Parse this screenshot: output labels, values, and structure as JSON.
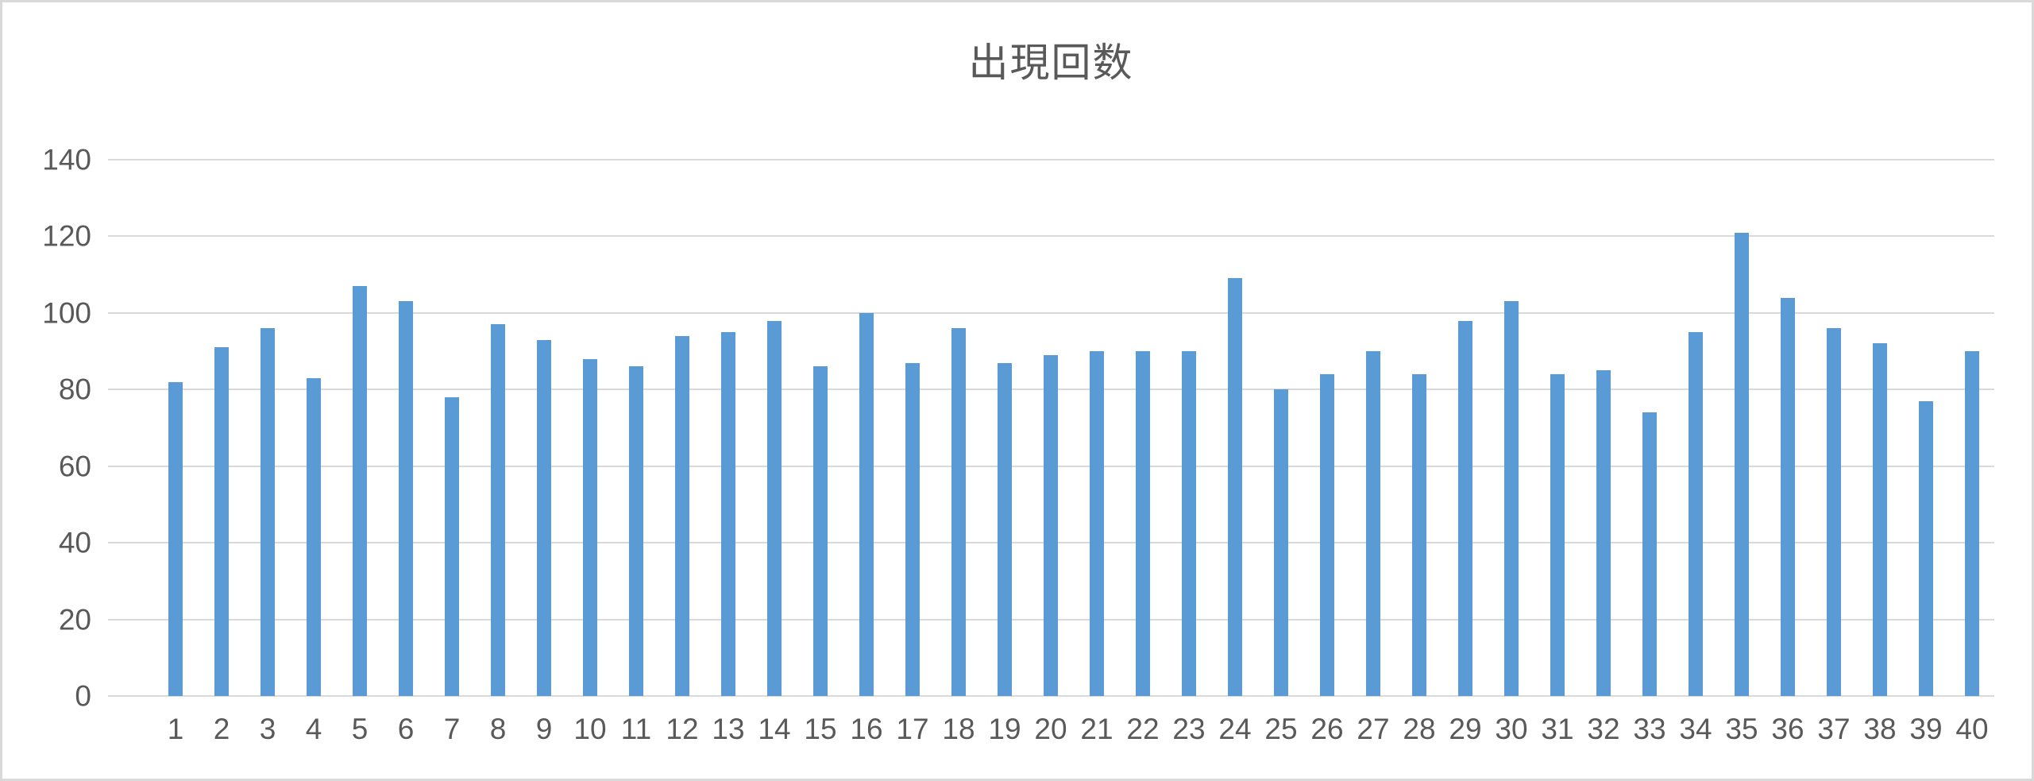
{
  "chart_data": {
    "type": "bar",
    "title": "出現回数",
    "categories": [
      "1",
      "2",
      "3",
      "4",
      "5",
      "6",
      "7",
      "8",
      "9",
      "10",
      "11",
      "12",
      "13",
      "14",
      "15",
      "16",
      "17",
      "18",
      "19",
      "20",
      "21",
      "22",
      "23",
      "24",
      "25",
      "26",
      "27",
      "28",
      "29",
      "30",
      "31",
      "32",
      "33",
      "34",
      "35",
      "36",
      "37",
      "38",
      "39",
      "40"
    ],
    "values": [
      82,
      91,
      96,
      83,
      107,
      103,
      78,
      97,
      93,
      88,
      86,
      94,
      95,
      98,
      86,
      100,
      87,
      96,
      87,
      89,
      90,
      90,
      90,
      109,
      80,
      84,
      90,
      84,
      98,
      103,
      84,
      85,
      74,
      95,
      121,
      104,
      96,
      92,
      77,
      90
    ],
    "xlabel": "",
    "ylabel": "",
    "ylim": [
      0,
      140
    ],
    "yticks": [
      0,
      20,
      40,
      60,
      80,
      100,
      120,
      140
    ],
    "grid": true,
    "legend_position": "none",
    "bar_color": "#5b9bd5",
    "gridline_color": "#d9d9d9",
    "axis_text_color": "#595959",
    "title_color": "#595959",
    "frame_border_color": "#d9d9d9",
    "background_color": "#ffffff"
  }
}
